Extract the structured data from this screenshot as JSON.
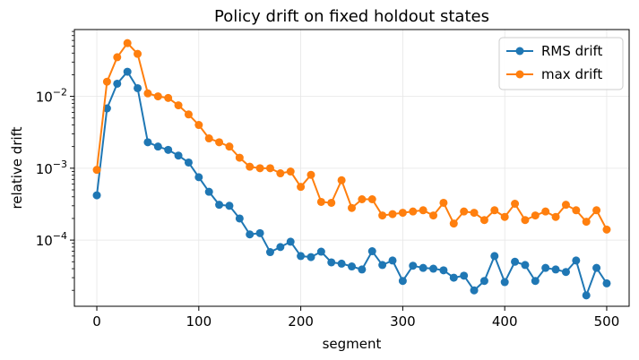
{
  "chart_data": {
    "type": "line",
    "title": "Policy drift on fixed holdout states",
    "xlabel": "segment",
    "ylabel": "relative drift",
    "xlim": [
      -22,
      522
    ],
    "ylim": [
      1.2e-05,
      0.085
    ],
    "yscale": "log",
    "grid": true,
    "legend": "top-right",
    "xticks": [
      {
        "v": 0,
        "label": "0"
      },
      {
        "v": 100,
        "label": "100"
      },
      {
        "v": 200,
        "label": "200"
      },
      {
        "v": 300,
        "label": "300"
      },
      {
        "v": 400,
        "label": "400"
      },
      {
        "v": 500,
        "label": "500"
      }
    ],
    "yticks": [
      {
        "v": 0.0001,
        "base": "10",
        "exp": "−4"
      },
      {
        "v": 0.001,
        "base": "10",
        "exp": "−3"
      },
      {
        "v": 0.01,
        "base": "10",
        "exp": "−2"
      }
    ],
    "x": [
      0,
      10,
      20,
      30,
      40,
      50,
      60,
      70,
      80,
      90,
      100,
      110,
      120,
      130,
      140,
      150,
      160,
      170,
      180,
      190,
      200,
      210,
      220,
      230,
      240,
      250,
      260,
      270,
      280,
      290,
      300,
      310,
      320,
      330,
      340,
      350,
      360,
      370,
      380,
      390,
      400,
      410,
      420,
      430,
      440,
      450,
      460,
      470,
      480,
      490,
      500
    ],
    "series": [
      {
        "name": "RMS drift",
        "color": "#1f77b4",
        "values": [
          0.00042,
          0.0068,
          0.015,
          0.022,
          0.013,
          0.0023,
          0.002,
          0.0018,
          0.0015,
          0.0012,
          0.00075,
          0.00047,
          0.00031,
          0.0003,
          0.0002,
          0.00012,
          0.000125,
          6.8e-05,
          8e-05,
          9.5e-05,
          6e-05,
          5.8e-05,
          6.9e-05,
          4.9e-05,
          4.7e-05,
          4.3e-05,
          3.9e-05,
          7e-05,
          4.5e-05,
          5.2e-05,
          2.7e-05,
          4.4e-05,
          4.1e-05,
          4e-05,
          3.8e-05,
          3e-05,
          3.2e-05,
          2e-05,
          2.7e-05,
          6e-05,
          2.6e-05,
          5e-05,
          4.5e-05,
          2.7e-05,
          4.1e-05,
          3.9e-05,
          3.6e-05,
          5.2e-05,
          1.7e-05,
          4.1e-05,
          2.5e-05
        ]
      },
      {
        "name": "max drift",
        "color": "#ff7f0e",
        "values": [
          0.00095,
          0.016,
          0.035,
          0.055,
          0.039,
          0.011,
          0.01,
          0.0095,
          0.0075,
          0.0056,
          0.004,
          0.0026,
          0.0023,
          0.002,
          0.0014,
          0.00105,
          0.001,
          0.001,
          0.00085,
          0.0009,
          0.00055,
          0.00081,
          0.00034,
          0.00033,
          0.00068,
          0.00028,
          0.00037,
          0.00037,
          0.00022,
          0.00023,
          0.00024,
          0.00025,
          0.00026,
          0.00022,
          0.00033,
          0.00017,
          0.00025,
          0.00024,
          0.00019,
          0.00026,
          0.00021,
          0.00032,
          0.00019,
          0.00022,
          0.00025,
          0.00021,
          0.00031,
          0.00026,
          0.00018,
          0.00026,
          0.00014
        ]
      }
    ]
  }
}
